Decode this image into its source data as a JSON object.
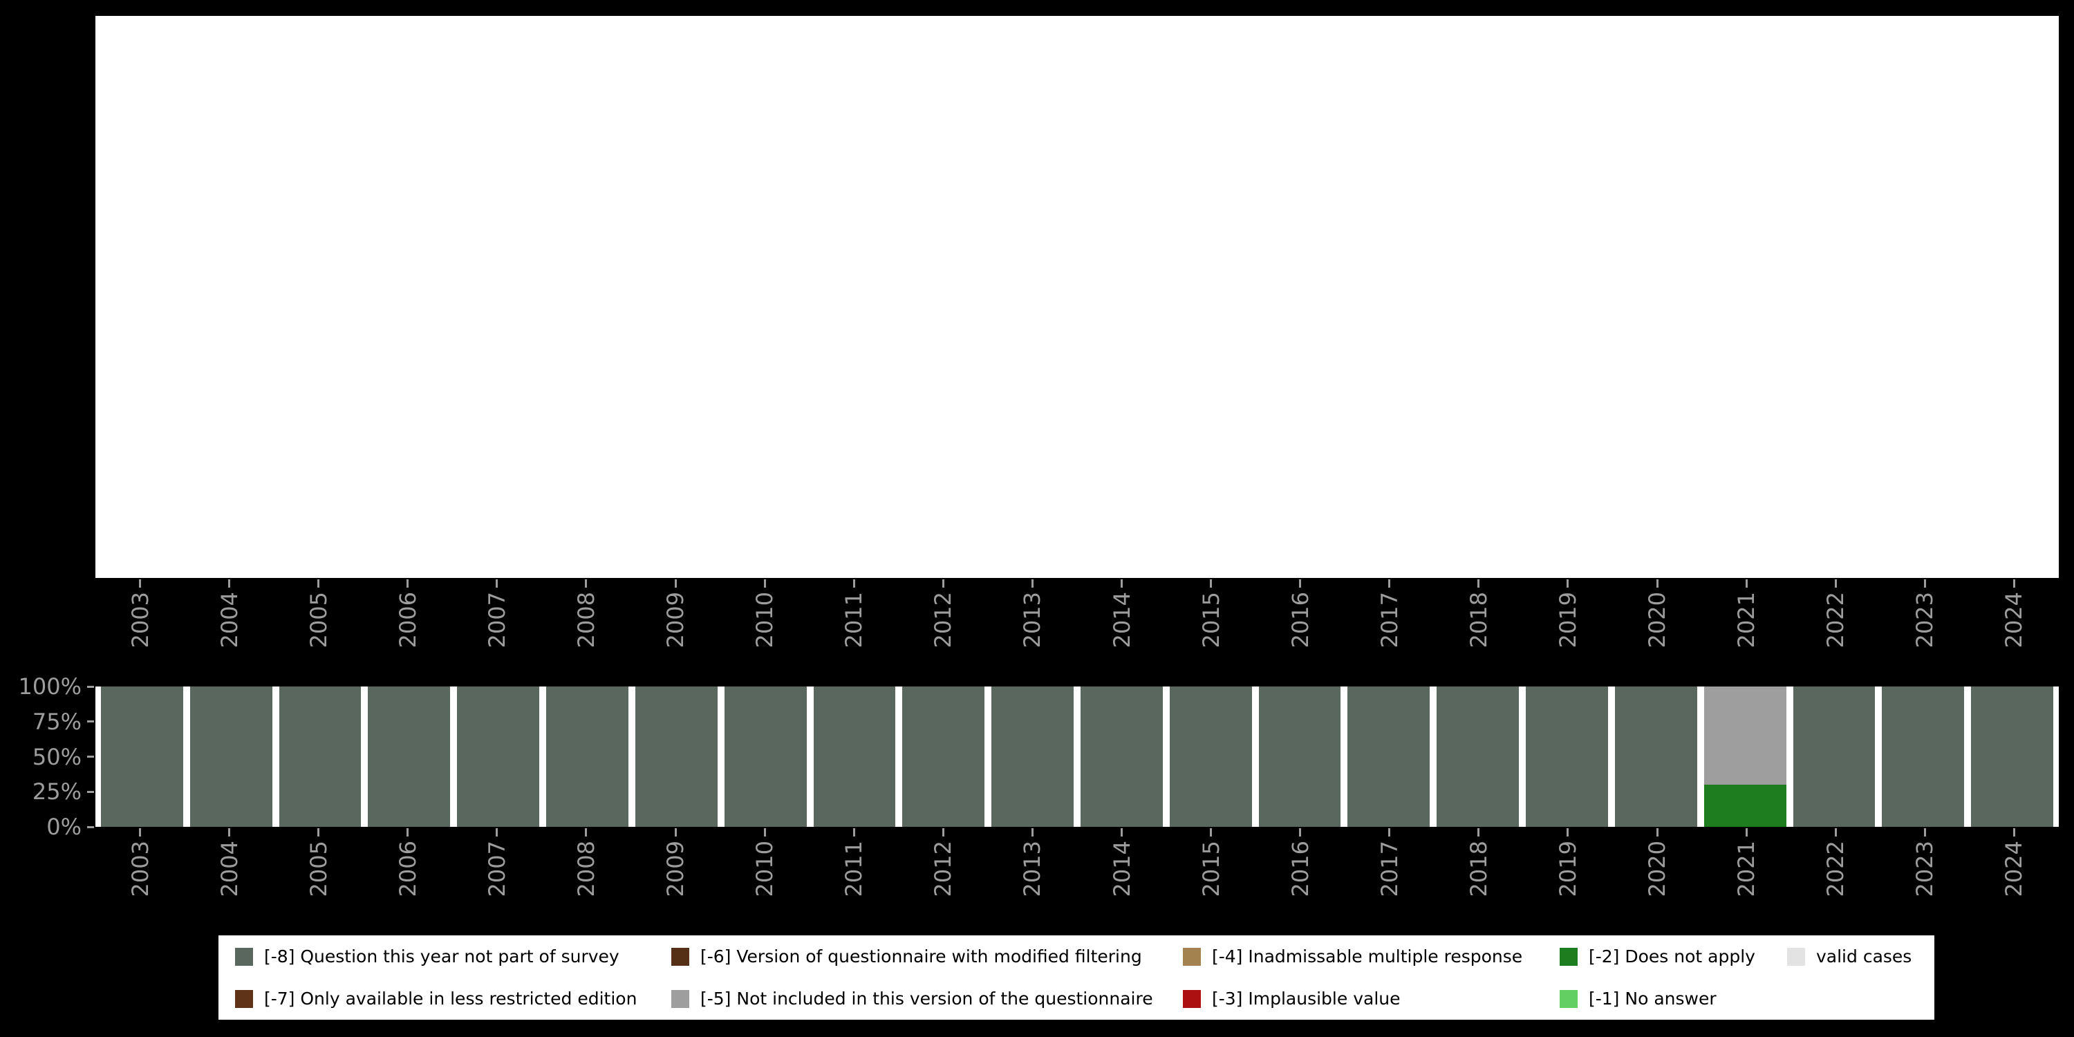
{
  "page": {
    "background": "#000000",
    "panel_background": "#ffffff",
    "axis_text_color": "#9d9d9d"
  },
  "years": [
    "2003",
    "2004",
    "2005",
    "2006",
    "2007",
    "2008",
    "2009",
    "2010",
    "2011",
    "2012",
    "2013",
    "2014",
    "2015",
    "2016",
    "2017",
    "2018",
    "2019",
    "2020",
    "2021",
    "2022",
    "2023",
    "2024"
  ],
  "y_axis": {
    "tick_labels": [
      "100%",
      "75%",
      "50%",
      "25%",
      "0%"
    ]
  },
  "legend": {
    "rows": [
      [
        {
          "label": "[-8] Question this year not part of survey",
          "color": "#5a675e"
        },
        {
          "label": "[-6] Version of questionnaire with modified filtering",
          "color": "#553016"
        },
        {
          "label": "[-4] Inadmissable multiple response",
          "color": "#a3824f"
        },
        {
          "label": "[-2] Does not apply",
          "color": "#1e7d1e"
        },
        {
          "label": "valid cases",
          "color": "#e3e3e3"
        }
      ],
      [
        {
          "label": "[-7] Only available in less restricted edition",
          "color": "#5e3318"
        },
        {
          "label": "[-5] Not included in this version of the questionnaire",
          "color": "#9e9e9e"
        },
        {
          "label": "[-3] Implausible value",
          "color": "#ad1010"
        },
        {
          "label": "[-1] No answer",
          "color": "#63cf63"
        }
      ]
    ]
  },
  "chart_data": [
    {
      "id": "top-panel",
      "type": "bar",
      "title": "",
      "categories": [
        "2003",
        "2004",
        "2005",
        "2006",
        "2007",
        "2008",
        "2009",
        "2010",
        "2011",
        "2012",
        "2013",
        "2014",
        "2015",
        "2016",
        "2017",
        "2018",
        "2019",
        "2020",
        "2021",
        "2022",
        "2023",
        "2024"
      ],
      "series": [],
      "grid": false,
      "legend_position": "none"
    },
    {
      "id": "missingness-by-year",
      "type": "bar",
      "stacked": true,
      "unit": "%",
      "title": "",
      "categories": [
        "2003",
        "2004",
        "2005",
        "2006",
        "2007",
        "2008",
        "2009",
        "2010",
        "2011",
        "2012",
        "2013",
        "2014",
        "2015",
        "2016",
        "2017",
        "2018",
        "2019",
        "2020",
        "2021",
        "2022",
        "2023",
        "2024"
      ],
      "series": [
        {
          "name": "[-8] Question this year not part of survey",
          "color": "#5a675e",
          "values": [
            100,
            100,
            100,
            100,
            100,
            100,
            100,
            100,
            100,
            100,
            100,
            100,
            100,
            100,
            100,
            100,
            100,
            100,
            0,
            100,
            100,
            100
          ]
        },
        {
          "name": "[-5] Not included in this version of the questionnaire",
          "color": "#9e9e9e",
          "values": [
            0,
            0,
            0,
            0,
            0,
            0,
            0,
            0,
            0,
            0,
            0,
            0,
            0,
            0,
            0,
            0,
            0,
            0,
            70,
            0,
            0,
            0
          ]
        },
        {
          "name": "[-2] Does not apply",
          "color": "#1e7d1e",
          "values": [
            0,
            0,
            0,
            0,
            0,
            0,
            0,
            0,
            0,
            0,
            0,
            0,
            0,
            0,
            0,
            0,
            0,
            0,
            30,
            0,
            0,
            0
          ]
        }
      ],
      "yticks": [
        "0%",
        "25%",
        "50%",
        "75%",
        "100%"
      ],
      "ylim": [
        0,
        100
      ],
      "grid": false,
      "legend_position": "bottom"
    }
  ]
}
